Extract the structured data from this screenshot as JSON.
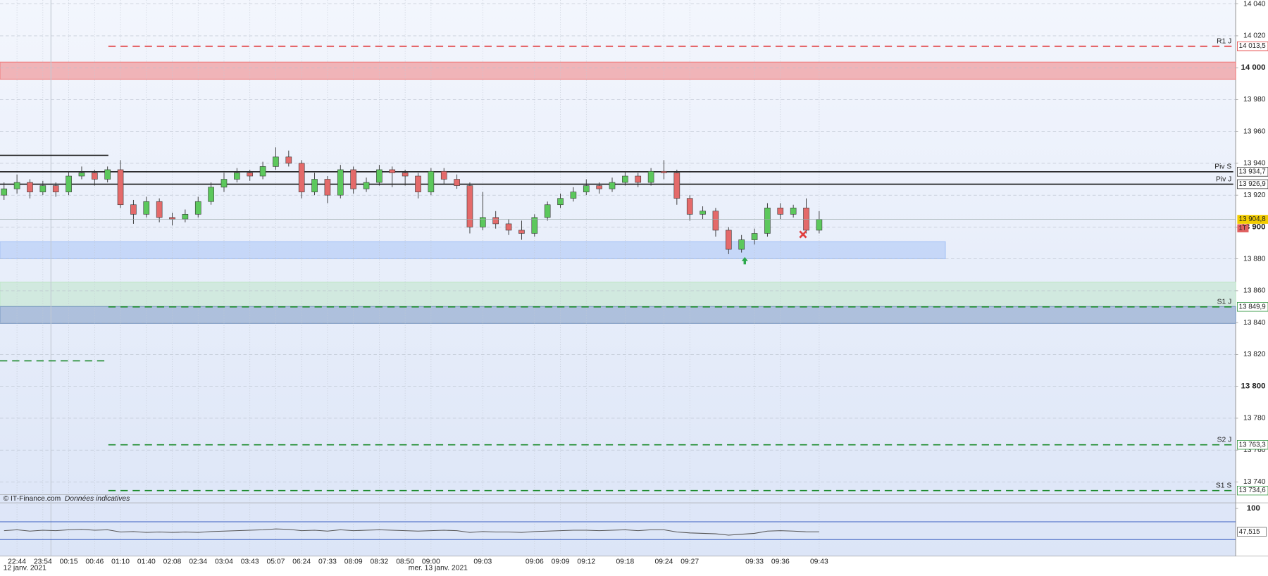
{
  "chart_data": {
    "type": "candlestick",
    "categories": [
      null,
      "22:44",
      null,
      "23:54",
      null,
      "00:15",
      null,
      "00:46",
      null,
      "01:10",
      null,
      "01:40",
      null,
      "02:08",
      null,
      "02:34",
      null,
      "03:04",
      null,
      "03:43",
      null,
      "05:07",
      null,
      "06:24",
      null,
      "07:33",
      null,
      "08:09",
      null,
      "08:32",
      null,
      "08:50",
      null,
      "09:00",
      null,
      null,
      null,
      "09:03",
      null,
      null,
      null,
      "09:06",
      null,
      "09:09",
      null,
      "09:12",
      null,
      null,
      "09:18",
      null,
      null,
      "09:24",
      null,
      "09:27",
      null,
      null,
      null,
      null,
      "09:33",
      null,
      "09:36",
      null,
      null,
      "09:43"
    ],
    "dates": [
      "12 janv. 2021",
      "mer. 13 janv. 2021"
    ],
    "open": [
      13920,
      13924,
      13928,
      13922,
      13926,
      13922,
      13932,
      13934,
      13930,
      13936,
      13914,
      13908,
      13916,
      13906,
      13905,
      13908,
      13916,
      13925,
      13930,
      13934,
      13932,
      13938,
      13944,
      13940,
      13922,
      13930,
      13920,
      13936,
      13924,
      13928,
      13936,
      13934,
      13932,
      13922,
      13935,
      13930,
      13926,
      13900,
      13906,
      13902,
      13898,
      13896,
      13906,
      13914,
      13918,
      13922,
      13926,
      13924,
      13928,
      13932,
      13928,
      13935,
      13934,
      13918,
      13908,
      13910,
      13898,
      13886,
      13892,
      13896,
      13912,
      13908,
      13912,
      13898
    ],
    "high": [
      13928,
      13933,
      13930,
      13929,
      13928,
      13935,
      13938,
      13936,
      13938,
      13942,
      13917,
      13919,
      13918,
      13909,
      13911,
      13919,
      13928,
      13934,
      13937,
      13936,
      13941,
      13950,
      13948,
      13942,
      13934,
      13932,
      13939,
      13938,
      13931,
      13939,
      13938,
      13936,
      13934,
      13937,
      13937,
      13933,
      13928,
      13922,
      13910,
      13905,
      13904,
      13908,
      13916,
      13921,
      13925,
      13930,
      13928,
      13931,
      13935,
      13934,
      13937,
      13942,
      13936,
      13920,
      13913,
      13912,
      13900,
      13895,
      13899,
      13915,
      13915,
      13914,
      13918,
      13910
    ],
    "low": [
      13917,
      13921,
      13918,
      13920,
      13919,
      13920,
      13930,
      13926,
      13928,
      13912,
      13902,
      13906,
      13903,
      13901,
      13903,
      13906,
      13914,
      13922,
      13928,
      13929,
      13930,
      13936,
      13938,
      13918,
      13920,
      13915,
      13918,
      13921,
      13922,
      13926,
      13925,
      13926,
      13918,
      13920,
      13927,
      13924,
      13896,
      13898,
      13899,
      13895,
      13892,
      13894,
      13904,
      13912,
      13916,
      13920,
      13921,
      13922,
      13926,
      13925,
      13926,
      13930,
      13914,
      13904,
      13905,
      13894,
      13883,
      13884,
      13889,
      13894,
      13905,
      13906,
      13896,
      13896
    ],
    "close": [
      13924,
      13928,
      13922,
      13926,
      13922,
      13932,
      13934,
      13930,
      13936,
      13914,
      13908,
      13916,
      13906,
      13905,
      13908,
      13916,
      13925,
      13930,
      13934,
      13932,
      13938,
      13944,
      13940,
      13922,
      13930,
      13920,
      13936,
      13924,
      13928,
      13936,
      13934,
      13932,
      13922,
      13935,
      13930,
      13926,
      13900,
      13906,
      13902,
      13898,
      13896,
      13906,
      13914,
      13918,
      13922,
      13926,
      13924,
      13928,
      13932,
      13928,
      13935,
      13934,
      13918,
      13908,
      13910,
      13898,
      13886,
      13892,
      13896,
      13912,
      13908,
      13912,
      13898,
      13904.8
    ],
    "up_color": "#5cc85c",
    "down_color": "#e46a6a",
    "ylim": [
      13733,
      14042.5
    ],
    "yticks": [
      {
        "value": 13740,
        "label": "13 740"
      },
      {
        "value": 13760,
        "label": "13 760"
      },
      {
        "value": 13780,
        "label": "13 780"
      },
      {
        "value": 13800,
        "label": "13 800"
      },
      {
        "value": 13820,
        "label": "13 820"
      },
      {
        "value": 13840,
        "label": "13 840"
      },
      {
        "value": 13860,
        "label": "13 860"
      },
      {
        "value": 13880,
        "label": "13 880"
      },
      {
        "value": 13900,
        "label": "13 900"
      },
      {
        "value": 13920,
        "label": "13 920"
      },
      {
        "value": 13940,
        "label": "13 940"
      },
      {
        "value": 13960,
        "label": "13 960"
      },
      {
        "value": 13980,
        "label": "13 980"
      },
      {
        "value": 14000,
        "label": "14 000"
      },
      {
        "value": 14020,
        "label": "14 020"
      },
      {
        "value": 14040,
        "label": "14 040"
      }
    ],
    "grid": true,
    "zones": [
      {
        "from": 13992.8,
        "to": 14003.5,
        "color": "#f08080"
      },
      {
        "from": 13880.1,
        "to": 13890.8,
        "color": "#a9c4f5"
      },
      {
        "from": 13850.1,
        "to": 13865.4,
        "color": "#bfe6c8"
      },
      {
        "from": 13839.5,
        "to": 13850.1,
        "color": "#7f9cc4"
      }
    ],
    "levels": [
      {
        "name": "R1 J",
        "value": 14013.5,
        "value_label": "14 013,5",
        "color": "#e02020",
        "style": "dashed"
      },
      {
        "name": "Piv S",
        "value": 13934.7,
        "value_label": "13 934,7",
        "color": "#111111",
        "style": "solid"
      },
      {
        "name": "Piv J",
        "value": 13926.9,
        "value_label": "13 926,9",
        "color": "#111111",
        "style": "solid"
      },
      {
        "name": "S1 J",
        "value": 13849.9,
        "value_label": "13 849,9",
        "color": "#1a8a2a",
        "style": "dashed"
      },
      {
        "name": "S2 J",
        "value": 13763.3,
        "value_label": "13 763,3",
        "color": "#1a8a2a",
        "style": "dashed"
      },
      {
        "name": "S1 S",
        "value": 13734.6,
        "value_label": "13 734,6",
        "color": "#1a8a2a",
        "style": "dashed"
      }
    ],
    "previous_levels": [
      {
        "value": 13945,
        "color": "#111111",
        "style": "solid"
      },
      {
        "value": 13816,
        "color": "#1a8a2a",
        "style": "dashed"
      }
    ],
    "last_price_label": "13 904,8",
    "tag": "1T",
    "credit": "© IT-Finance.com",
    "note": "Données indicatives",
    "indicator": {
      "type": "line",
      "values": [
        50,
        52,
        49,
        51,
        50,
        52,
        53,
        51,
        52,
        47,
        48,
        46,
        47,
        46,
        47,
        46,
        48,
        49,
        50,
        51,
        52,
        54,
        53,
        50,
        51,
        49,
        52,
        50,
        51,
        52,
        51,
        50,
        49,
        50,
        51,
        50,
        46,
        48,
        47,
        47,
        46,
        48,
        49,
        50,
        51,
        51,
        50,
        51,
        52,
        50,
        52,
        52,
        47,
        45,
        44,
        43,
        40,
        42,
        44,
        49,
        50,
        49,
        47.5,
        47.515
      ],
      "ylim": [
        0,
        100
      ],
      "yticks": [
        100
      ],
      "levels": [
        70,
        30
      ],
      "last_label": "47,515",
      "color": "#555555"
    }
  }
}
